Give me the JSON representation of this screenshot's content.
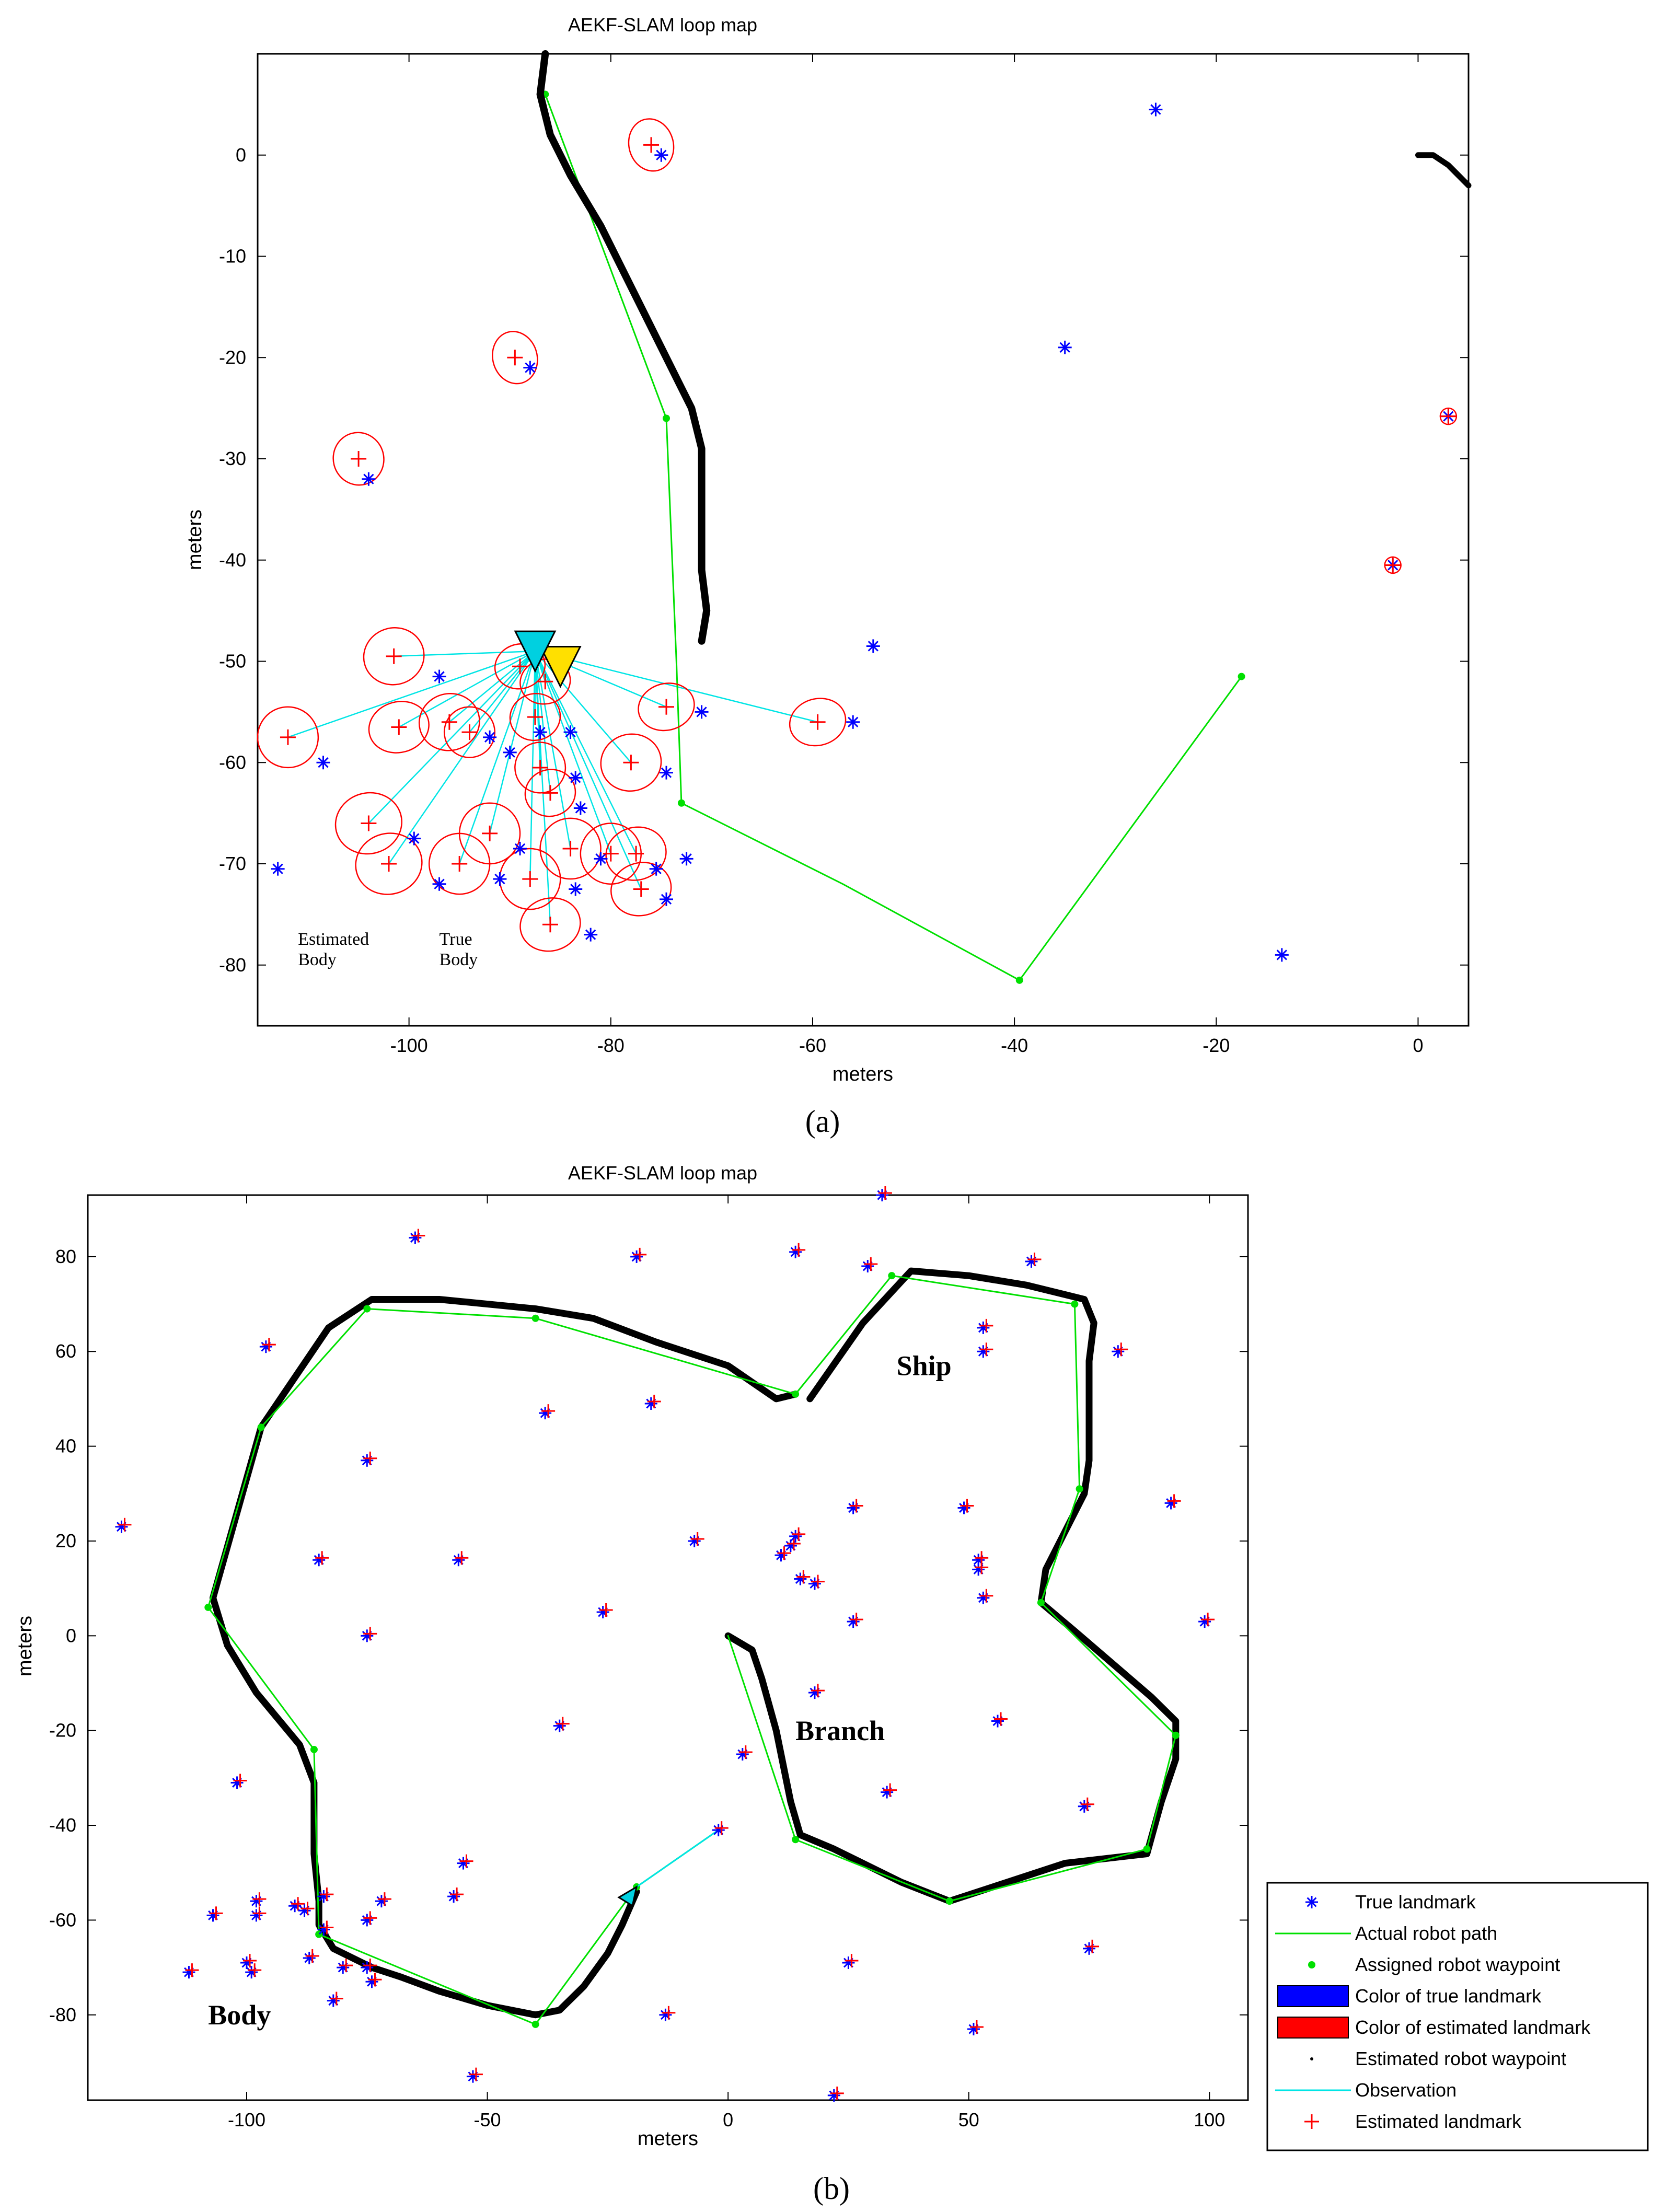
{
  "figures": {
    "a_label": "(a)",
    "b_label": "(b)"
  },
  "colors": {
    "true_landmark": "#0000ff",
    "estimated_landmark": "#ff0000",
    "actual_path": "#00e000",
    "waypoint": "#00e000",
    "estimated_path": "#000000",
    "observation": "#00e5e5",
    "true_body": "#ffe000",
    "estimated_body": "#00d0e0"
  },
  "chart_data": [
    {
      "type": "scatter",
      "title": "AEKF-SLAM loop map",
      "xlabel": "meters",
      "ylabel": "meters",
      "xlim": [
        -115,
        5
      ],
      "ylim": [
        -86,
        10
      ],
      "xticks": [
        -100,
        -80,
        -60,
        -40,
        -20,
        0
      ],
      "yticks": [
        0,
        -10,
        -20,
        -30,
        -40,
        -50,
        -60,
        -70,
        -80
      ],
      "annotations": [
        {
          "text": "Estimated\nBody",
          "x": -111,
          "y": -78
        },
        {
          "text": "True\nBody",
          "x": -97,
          "y": -78
        }
      ],
      "true_landmarks": [
        [
          -75,
          0
        ],
        [
          -26,
          4.5
        ],
        [
          -88,
          -21
        ],
        [
          -35,
          -19
        ],
        [
          -104,
          -32
        ],
        [
          -2.5,
          -40.5
        ],
        [
          3,
          -25.8
        ],
        [
          -54,
          -48.5
        ],
        [
          -97,
          -51.5
        ],
        [
          -108.5,
          -60
        ],
        [
          -56,
          -56
        ],
        [
          -71,
          -55
        ],
        [
          -74.5,
          -61
        ],
        [
          -87,
          -57
        ],
        [
          -92,
          -57.5
        ],
        [
          -90,
          -59
        ],
        [
          -84,
          -57
        ],
        [
          -83.5,
          -61.5
        ],
        [
          -83,
          -64.5
        ],
        [
          -113,
          -70.5
        ],
        [
          -99.5,
          -67.5
        ],
        [
          -97,
          -72
        ],
        [
          -91,
          -71.5
        ],
        [
          -89,
          -68.5
        ],
        [
          -83.5,
          -72.5
        ],
        [
          -81,
          -69.5
        ],
        [
          -75.5,
          -70.5
        ],
        [
          -72.5,
          -69.5
        ],
        [
          -74.5,
          -73.5
        ],
        [
          -82,
          -77
        ],
        [
          -13.5,
          -79
        ]
      ],
      "estimated_landmarks": [
        {
          "x": -76,
          "y": 1,
          "rx": 2.2,
          "ry": 2.6
        },
        {
          "x": -89.5,
          "y": -20,
          "rx": 2.2,
          "ry": 2.6
        },
        {
          "x": -105,
          "y": -30,
          "rx": 2.5,
          "ry": 2.6
        },
        {
          "x": -2.5,
          "y": -40.5,
          "rx": 0.8,
          "ry": 0.8
        },
        {
          "x": 3,
          "y": -25.8,
          "rx": 0.8,
          "ry": 0.8
        },
        {
          "x": -101.5,
          "y": -49.5,
          "rx": 3,
          "ry": 2.8
        },
        {
          "x": -89,
          "y": -50.5,
          "rx": 2.5,
          "ry": 2.2
        },
        {
          "x": -86.5,
          "y": -52,
          "rx": 2.5,
          "ry": 2.2
        },
        {
          "x": -112,
          "y": -57.5,
          "rx": 3,
          "ry": 3
        },
        {
          "x": -101,
          "y": -56.5,
          "rx": 3,
          "ry": 2.5
        },
        {
          "x": -96,
          "y": -56,
          "rx": 3,
          "ry": 2.8
        },
        {
          "x": -94,
          "y": -57,
          "rx": 2.5,
          "ry": 2.5
        },
        {
          "x": -87.5,
          "y": -55.5,
          "rx": 2.5,
          "ry": 2.3
        },
        {
          "x": -87,
          "y": -60.5,
          "rx": 2.5,
          "ry": 2.5
        },
        {
          "x": -86,
          "y": -63,
          "rx": 2.5,
          "ry": 2.3
        },
        {
          "x": -74.5,
          "y": -54.5,
          "rx": 2.8,
          "ry": 2.3
        },
        {
          "x": -59.5,
          "y": -56,
          "rx": 2.8,
          "ry": 2.3
        },
        {
          "x": -78,
          "y": -60,
          "rx": 3,
          "ry": 2.8
        },
        {
          "x": -104,
          "y": -66,
          "rx": 3.3,
          "ry": 3
        },
        {
          "x": -102,
          "y": -70,
          "rx": 3.3,
          "ry": 3
        },
        {
          "x": -95,
          "y": -70,
          "rx": 3,
          "ry": 3
        },
        {
          "x": -92,
          "y": -67,
          "rx": 3,
          "ry": 3
        },
        {
          "x": -88,
          "y": -71.5,
          "rx": 3,
          "ry": 3
        },
        {
          "x": -84,
          "y": -68.5,
          "rx": 3,
          "ry": 3
        },
        {
          "x": -80,
          "y": -69,
          "rx": 3,
          "ry": 3
        },
        {
          "x": -77.5,
          "y": -69,
          "rx": 3,
          "ry": 2.6
        },
        {
          "x": -77,
          "y": -72.5,
          "rx": 3,
          "ry": 2.6
        },
        {
          "x": -86,
          "y": -76,
          "rx": 3,
          "ry": 2.6
        }
      ],
      "estimated_path": [
        [
          -86.5,
          10
        ],
        [
          -87,
          6
        ],
        [
          -86,
          2
        ],
        [
          -84,
          -2
        ],
        [
          -81,
          -7
        ],
        [
          -79,
          -11
        ],
        [
          -77,
          -15
        ],
        [
          -75,
          -19
        ],
        [
          -74,
          -21
        ],
        [
          -73,
          -23
        ],
        [
          -72,
          -25
        ],
        [
          -71,
          -29
        ],
        [
          -71,
          -33
        ],
        [
          -71,
          -37
        ],
        [
          -71,
          -41
        ],
        [
          -70.5,
          -45
        ],
        [
          -71,
          -48
        ]
      ],
      "estimated_path_right": [
        [
          0,
          0
        ],
        [
          1.5,
          0
        ],
        [
          3,
          -1
        ],
        [
          4.5,
          -2.5
        ],
        [
          5,
          -3
        ]
      ],
      "actual_path": [
        [
          -86.5,
          6
        ],
        [
          -74.5,
          -26
        ],
        [
          -73.5,
          -50
        ],
        [
          -73,
          -64
        ],
        [
          -57,
          -72
        ],
        [
          -39.5,
          -81.5
        ],
        [
          -17.5,
          -51.5
        ]
      ],
      "waypoints": [
        [
          -86.5,
          6
        ],
        [
          -74.5,
          -26
        ],
        [
          -73,
          -64
        ],
        [
          -39.5,
          -81.5
        ],
        [
          -17.5,
          -51.5
        ]
      ],
      "true_body": {
        "x": -85,
        "y": -50
      },
      "estimated_body": {
        "x": -87.5,
        "y": -49
      }
    },
    {
      "type": "scatter",
      "title": "AEKF-SLAM loop map",
      "xlabel": "meters",
      "ylabel": "meters",
      "xlim": [
        -133,
        108
      ],
      "ylim": [
        -98,
        93
      ],
      "xticks": [
        -100,
        -50,
        0,
        50,
        100
      ],
      "yticks": [
        80,
        60,
        40,
        20,
        0,
        -20,
        -40,
        -60,
        -80
      ],
      "annotations": [
        {
          "text": "Ship",
          "x": 35,
          "y": 55
        },
        {
          "text": "Branch",
          "x": 14,
          "y": -22
        },
        {
          "text": "Body",
          "x": -108,
          "y": -82
        }
      ],
      "landmarks": [
        [
          -126,
          23
        ],
        [
          -96,
          61
        ],
        [
          -65,
          84
        ],
        [
          -38,
          47
        ],
        [
          -19,
          80
        ],
        [
          -16,
          49
        ],
        [
          14,
          81
        ],
        [
          29,
          78
        ],
        [
          63,
          79
        ],
        [
          53,
          65
        ],
        [
          53,
          60
        ],
        [
          81,
          60
        ],
        [
          92,
          28
        ],
        [
          99,
          3
        ],
        [
          -85,
          16
        ],
        [
          -75,
          37
        ],
        [
          -75,
          0
        ],
        [
          -56,
          16
        ],
        [
          -26,
          5
        ],
        [
          -35,
          -19
        ],
        [
          -7,
          20
        ],
        [
          11,
          17
        ],
        [
          13,
          19
        ],
        [
          14,
          21
        ],
        [
          15,
          12
        ],
        [
          18,
          11
        ],
        [
          26,
          27
        ],
        [
          26,
          3
        ],
        [
          49,
          27
        ],
        [
          52,
          14
        ],
        [
          52,
          16
        ],
        [
          53,
          8
        ],
        [
          18,
          -12
        ],
        [
          3,
          -25
        ],
        [
          33,
          -33
        ],
        [
          56,
          -18
        ],
        [
          74,
          -36
        ],
        [
          75,
          -66
        ],
        [
          -102,
          -31
        ],
        [
          -2,
          -41
        ],
        [
          -55,
          -48
        ],
        [
          -57,
          -55
        ],
        [
          -72,
          -56
        ],
        [
          -75,
          -60
        ],
        [
          -107,
          -59
        ],
        [
          -112,
          -71
        ],
        [
          -98,
          -56
        ],
        [
          -98,
          -59
        ],
        [
          -100,
          -69
        ],
        [
          -99,
          -71
        ],
        [
          -90,
          -57
        ],
        [
          -88,
          -58
        ],
        [
          -87,
          -68
        ],
        [
          -84,
          -55
        ],
        [
          -84,
          -62
        ],
        [
          -80,
          -70
        ],
        [
          -82,
          -77
        ],
        [
          -75,
          -70
        ],
        [
          -74,
          -73
        ],
        [
          -13,
          -80
        ],
        [
          25,
          -69
        ],
        [
          51,
          -83
        ],
        [
          -53,
          -93
        ],
        [
          22,
          -97
        ],
        [
          32,
          93
        ]
      ],
      "estimated_path": [
        [
          -107,
          8
        ],
        [
          -97,
          44
        ],
        [
          -83,
          65
        ],
        [
          -74,
          71
        ],
        [
          -60,
          71
        ],
        [
          -40,
          69
        ],
        [
          -28,
          67
        ],
        [
          -15,
          62
        ],
        [
          0,
          57
        ],
        [
          10,
          50
        ],
        [
          14,
          51
        ]
      ],
      "estimated_path_2": [
        [
          17,
          50
        ],
        [
          28,
          66
        ],
        [
          38,
          77
        ],
        [
          50,
          76
        ],
        [
          62,
          74
        ],
        [
          74,
          71
        ],
        [
          76,
          66
        ],
        [
          75,
          58
        ],
        [
          75,
          48
        ],
        [
          75,
          37
        ],
        [
          74,
          30
        ],
        [
          70,
          22
        ],
        [
          66,
          14
        ],
        [
          65,
          7
        ],
        [
          72,
          1
        ],
        [
          80,
          -6
        ],
        [
          88,
          -13
        ],
        [
          93,
          -18
        ],
        [
          93,
          -26
        ],
        [
          90,
          -35
        ],
        [
          87,
          -46
        ],
        [
          70,
          -48
        ],
        [
          55,
          -53
        ],
        [
          46,
          -56
        ],
        [
          36,
          -52
        ],
        [
          22,
          -45
        ],
        [
          15,
          -42
        ],
        [
          13,
          -35
        ],
        [
          10,
          -20
        ],
        [
          7,
          -9
        ],
        [
          5,
          -3
        ],
        [
          0,
          0
        ]
      ],
      "estimated_path_3": [
        [
          -107,
          8
        ],
        [
          -104,
          -2
        ],
        [
          -98,
          -12
        ],
        [
          -89,
          -23
        ],
        [
          -86,
          -31
        ],
        [
          -86,
          -46
        ],
        [
          -85,
          -56
        ],
        [
          -85,
          -61
        ],
        [
          -82,
          -66
        ],
        [
          -74,
          -70
        ],
        [
          -68,
          -72
        ],
        [
          -60,
          -75
        ],
        [
          -50,
          -78
        ],
        [
          -40,
          -80
        ],
        [
          -35,
          -79
        ],
        [
          -30,
          -74
        ],
        [
          -25,
          -67
        ],
        [
          -22,
          -61
        ],
        [
          -19,
          -54
        ]
      ],
      "actual_path": [
        [
          -108,
          6
        ],
        [
          -97,
          44
        ],
        [
          -75,
          69
        ],
        [
          -40,
          67
        ],
        [
          14,
          51
        ],
        [
          34,
          76
        ],
        [
          72,
          70
        ],
        [
          73,
          31
        ],
        [
          65,
          7
        ],
        [
          93,
          -21
        ],
        [
          87,
          -45
        ],
        [
          46,
          -56
        ],
        [
          14,
          -43
        ],
        [
          0,
          0
        ]
      ],
      "actual_path_2": [
        [
          -108,
          6
        ],
        [
          -86,
          -24
        ],
        [
          -85,
          -63
        ],
        [
          -40,
          -82
        ],
        [
          -19,
          -53
        ],
        [
          -2,
          -41
        ]
      ],
      "waypoints": [
        [
          -108,
          6
        ],
        [
          -97,
          44
        ],
        [
          -75,
          69
        ],
        [
          -40,
          67
        ],
        [
          14,
          51
        ],
        [
          34,
          76
        ],
        [
          72,
          70
        ],
        [
          73,
          31
        ],
        [
          65,
          7
        ],
        [
          93,
          -21
        ],
        [
          87,
          -45
        ],
        [
          46,
          -56
        ],
        [
          14,
          -43
        ],
        [
          -86,
          -24
        ],
        [
          -85,
          -63
        ],
        [
          -40,
          -82
        ],
        [
          -19,
          -53
        ]
      ],
      "observation": [
        [
          -19,
          -53
        ],
        [
          -2,
          -41
        ]
      ],
      "robot": {
        "x": -19,
        "y": -53
      }
    }
  ],
  "legend": {
    "placement": "bottom-right",
    "items": [
      {
        "label": "True landmark",
        "kind": "star"
      },
      {
        "label": "Actual robot path",
        "kind": "line-green"
      },
      {
        "label": "Assigned robot waypoint",
        "kind": "dot-green"
      },
      {
        "label": "Color of true landmark",
        "kind": "patch-blue"
      },
      {
        "label": "Color of estimated landmark",
        "kind": "patch-red"
      },
      {
        "label": "Estimated robot waypoint",
        "kind": "dot-black"
      },
      {
        "label": "Observation",
        "kind": "line-cyan"
      },
      {
        "label": "Estimated landmark",
        "kind": "plus-red"
      }
    ]
  }
}
